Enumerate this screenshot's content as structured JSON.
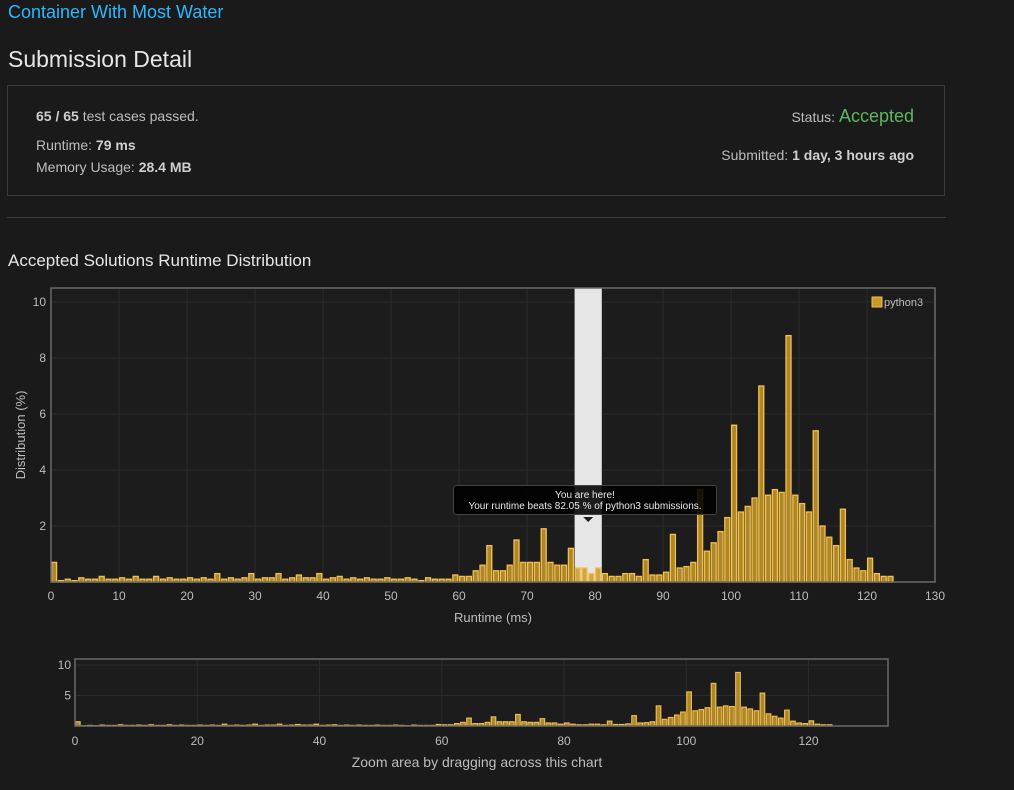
{
  "problem": {
    "title": "Container With Most Water"
  },
  "page": {
    "title": "Submission Detail"
  },
  "detail": {
    "cases_value": "65 / 65",
    "cases_suffix": "test cases passed.",
    "runtime_label": "Runtime:",
    "runtime_value": "79 ms",
    "memory_label": "Memory Usage:",
    "memory_value": "28.4 MB",
    "status_label": "Status:",
    "status_value": "Accepted",
    "submitted_label": "Submitted:",
    "submitted_value": "1 day, 3 hours ago"
  },
  "section": {
    "title": "Accepted Solutions Runtime Distribution"
  },
  "colors": {
    "bar_fill": "#c79a2e",
    "bar_stroke": "#f5c04a",
    "status": "#5cb85c",
    "link": "#2db7ff"
  },
  "chart_data": [
    {
      "type": "bar",
      "xlabel": "Runtime (ms)",
      "ylabel": "Distribution (%)",
      "xlim": [
        0,
        130
      ],
      "ylim": [
        0,
        10.5
      ],
      "xticks": [
        0,
        10,
        20,
        30,
        40,
        50,
        60,
        70,
        80,
        90,
        100,
        110,
        120,
        130
      ],
      "yticks": [
        2,
        4,
        6,
        8,
        10
      ],
      "grid": true,
      "legend": "top-right",
      "series": [
        {
          "name": "python3",
          "x": [
            0,
            1,
            2,
            3,
            4,
            5,
            6,
            7,
            8,
            9,
            10,
            11,
            12,
            13,
            14,
            15,
            16,
            17,
            18,
            19,
            20,
            21,
            22,
            23,
            24,
            25,
            26,
            27,
            28,
            29,
            30,
            31,
            32,
            33,
            34,
            35,
            36,
            37,
            38,
            39,
            40,
            41,
            42,
            43,
            44,
            45,
            46,
            47,
            48,
            49,
            50,
            51,
            52,
            53,
            54,
            55,
            56,
            57,
            58,
            59,
            60,
            61,
            62,
            63,
            64,
            65,
            66,
            67,
            68,
            69,
            70,
            71,
            72,
            73,
            74,
            75,
            76,
            77,
            78,
            79,
            80,
            81,
            82,
            83,
            84,
            85,
            86,
            87,
            88,
            89,
            90,
            91,
            92,
            93,
            94,
            95,
            96,
            97,
            98,
            99,
            100,
            101,
            102,
            103,
            104,
            105,
            106,
            107,
            108,
            109,
            110,
            111,
            112,
            113,
            114,
            115,
            116,
            117,
            118,
            119,
            120,
            121,
            122,
            123
          ],
          "values": [
            0.7,
            0.05,
            0.1,
            0.05,
            0.15,
            0.1,
            0.1,
            0.2,
            0.1,
            0.1,
            0.15,
            0.1,
            0.2,
            0.1,
            0.1,
            0.2,
            0.1,
            0.15,
            0.1,
            0.1,
            0.15,
            0.1,
            0.15,
            0.1,
            0.3,
            0.1,
            0.15,
            0.1,
            0.15,
            0.3,
            0.1,
            0.15,
            0.15,
            0.3,
            0.1,
            0.15,
            0.25,
            0.15,
            0.15,
            0.3,
            0.1,
            0.15,
            0.2,
            0.1,
            0.15,
            0.1,
            0.15,
            0.1,
            0.1,
            0.15,
            0.1,
            0.1,
            0.15,
            0.1,
            0.05,
            0.15,
            0.1,
            0.1,
            0.1,
            0.25,
            0.2,
            0.2,
            0.4,
            0.6,
            1.3,
            0.4,
            0.4,
            0.6,
            1.5,
            0.7,
            0.7,
            0.7,
            1.9,
            0.7,
            0.6,
            0.6,
            1.2,
            0.5,
            0.5,
            0.3,
            0.5,
            0.3,
            0.2,
            0.2,
            0.3,
            0.3,
            0.2,
            0.8,
            0.25,
            0.25,
            0.35,
            1.7,
            0.5,
            0.55,
            0.7,
            3.3,
            1.1,
            1.4,
            1.8,
            2.3,
            5.6,
            2.5,
            2.7,
            3.0,
            7.0,
            3.1,
            3.3,
            3.2,
            8.8,
            3.1,
            2.8,
            2.5,
            5.4,
            2.0,
            1.6,
            1.3,
            2.6,
            0.8,
            0.5,
            0.4,
            0.85,
            0.3,
            0.2,
            0.2
          ]
        }
      ],
      "highlight": {
        "x": 79
      },
      "tooltip": {
        "line1": "You are here!",
        "line2": "Your runtime beats 82.05 % of python3 submissions."
      }
    },
    {
      "type": "bar",
      "xlim": [
        0,
        133
      ],
      "ylim": [
        0,
        11
      ],
      "xticks": [
        0,
        20,
        40,
        60,
        80,
        100,
        120
      ],
      "yticks": [
        5,
        10
      ],
      "grid": true,
      "caption": "Zoom area by dragging across this chart"
    }
  ]
}
